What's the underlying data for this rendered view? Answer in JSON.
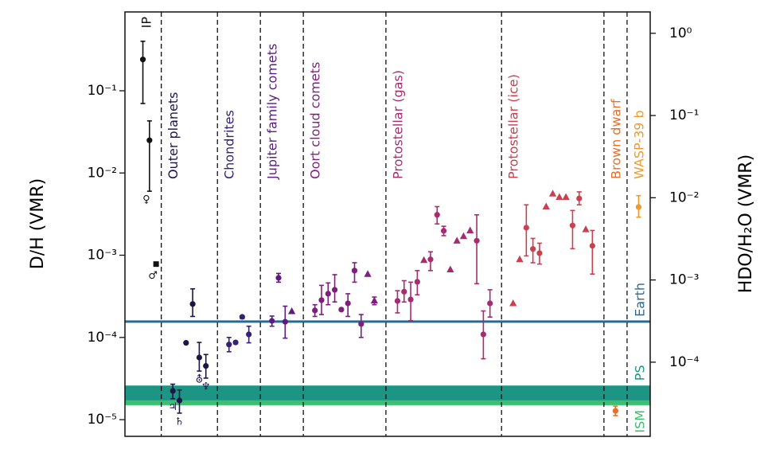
{
  "chart_data": {
    "type": "scatter",
    "y_label": "D/H (VMR)",
    "y2_label": "HDO/H₂O (VMR)",
    "log_y": true,
    "ylim": [
      6.27e-06,
      0.909
    ],
    "yticks": [
      {
        "value": 1e-05,
        "label": "10⁻⁵"
      },
      {
        "value": 0.0001,
        "label": "10⁻⁴"
      },
      {
        "value": 0.001,
        "label": "10⁻³"
      },
      {
        "value": 0.01,
        "label": "10⁻²"
      },
      {
        "value": 0.1,
        "label": "10⁻¹"
      }
    ],
    "y2lim": [
      1.254e-05,
      1.818
    ],
    "y2ticks": [
      {
        "value": 0.0001,
        "label": "10⁻⁴"
      },
      {
        "value": 0.001,
        "label": "10⁻³"
      },
      {
        "value": 0.01,
        "label": "10⁻²"
      },
      {
        "value": 0.1,
        "label": "10⁻¹"
      },
      {
        "value": 1,
        "label": "10⁰"
      }
    ],
    "series": [
      {
        "name": "IP",
        "color": "#111111",
        "values": [
          0.24,
          0.025,
          0.00078
        ],
        "err_low": [
          0.07,
          0.006,
          null
        ],
        "err_high": [
          0.4,
          0.043,
          null
        ],
        "markers": [
          "circle",
          "circle",
          "square"
        ],
        "point_labels": [
          null,
          "♀",
          "♂"
        ]
      },
      {
        "name": "Outer planets",
        "color": "#1e1547",
        "values": [
          2.24e-05,
          1.71e-05,
          8.6e-05,
          0.000255,
          5.7e-05,
          4.5e-05
        ],
        "err_low": [
          1.8e-05,
          1.2e-05,
          null,
          0.00018,
          3.9e-05,
          3.2e-05
        ],
        "err_high": [
          2.7e-05,
          2.3e-05,
          null,
          0.00039,
          8.7e-05,
          6.2e-05
        ],
        "markers": [
          "circle",
          "circle",
          "circle",
          "circle",
          "circle",
          "circle"
        ],
        "point_labels": [
          "♃",
          "♄",
          null,
          null,
          "⛢",
          "♆"
        ]
      },
      {
        "name": "Chondrites",
        "color": "#35207a",
        "values": [
          8.2e-05,
          8.7e-05,
          0.000178,
          0.000109
        ],
        "err_low": [
          6.7e-05,
          null,
          0.00017,
          8.6e-05
        ],
        "err_high": [
          0.0001,
          null,
          0.000182,
          0.000137
        ],
        "markers": [
          "circle",
          "circle",
          "circle",
          "circle"
        ]
      },
      {
        "name": "Jupiter family comets",
        "color": "#5b1b7e",
        "values": [
          0.000159,
          0.00053,
          0.000155,
          0.000208
        ],
        "err_low": [
          0.000137,
          0.00047,
          9.8e-05,
          null
        ],
        "err_high": [
          0.000182,
          0.0006,
          0.00024,
          null
        ],
        "markers": [
          "circle",
          "circle",
          "circle",
          "triangle"
        ]
      },
      {
        "name": "Oort cloud comets",
        "color": "#7e1f7c",
        "values": [
          0.000213,
          0.000284,
          0.00034,
          0.00038,
          0.000218,
          0.00026,
          0.00065,
          0.000146,
          0.00059,
          0.00028
        ],
        "err_low": [
          0.00018,
          0.00019,
          0.00025,
          0.00027,
          null,
          0.00018,
          0.00047,
          0.0001,
          null,
          0.00025
        ],
        "err_high": [
          0.00025,
          0.00043,
          0.00046,
          0.00058,
          null,
          0.00034,
          0.00081,
          0.00019,
          null,
          0.00031
        ],
        "markers": [
          "circle",
          "circle",
          "circle",
          "circle",
          "circle",
          "circle",
          "circle",
          "circle",
          "triangle",
          "triangle"
        ]
      },
      {
        "name": "Protostellar (gas)",
        "color": "#a52d6f",
        "values": [
          0.000278,
          0.00036,
          0.00029,
          0.000475,
          0.00087,
          0.00089,
          0.0031,
          0.00198,
          0.00067,
          0.0015,
          0.0017,
          0.002,
          0.0015,
          0.000109,
          0.00026
        ],
        "err_low": [
          0.000199,
          0.00027,
          0.00016,
          0.00033,
          null,
          0.00065,
          0.0024,
          0.00173,
          null,
          null,
          null,
          null,
          0.00045,
          5.5e-05,
          0.000177
        ],
        "err_high": [
          0.00037,
          0.00049,
          0.00047,
          0.00065,
          null,
          0.0011,
          0.0039,
          0.00225,
          null,
          null,
          null,
          null,
          0.0031,
          0.00021,
          0.00038
        ],
        "markers": [
          "circle",
          "circle",
          "circle",
          "circle",
          "triangle",
          "circle",
          "circle",
          "circle",
          "triangle",
          "triangle",
          "triangle",
          "triangle",
          "circle",
          "circle",
          "circle"
        ]
      },
      {
        "name": "Protostellar (ice)",
        "color": "#c9404f",
        "values": [
          0.00026,
          0.00089,
          0.00216,
          0.00119,
          0.00106,
          0.0039,
          0.0056,
          0.0051,
          0.0051,
          0.0023,
          0.0049,
          0.00206,
          0.0013
        ],
        "err_low": [
          null,
          null,
          0.00098,
          0.00081,
          0.00078,
          null,
          null,
          null,
          null,
          0.0012,
          0.0041,
          null,
          0.00059
        ],
        "err_high": [
          null,
          null,
          0.0041,
          0.0016,
          0.0014,
          null,
          null,
          null,
          null,
          0.0035,
          0.0059,
          null,
          0.002
        ],
        "markers": [
          "triangle",
          "triangle",
          "circle",
          "circle",
          "circle",
          "triangle",
          "triangle",
          "triangle",
          "triangle",
          "circle",
          "circle",
          "triangle",
          "circle"
        ]
      },
      {
        "name": "Brown dwarf",
        "color": "#e5702a",
        "values": [
          1.28e-05
        ],
        "err_low": [
          1.12e-05
        ],
        "err_high": [
          1.46e-05
        ],
        "markers": [
          "circle"
        ]
      },
      {
        "name": "WASP-39 b",
        "color": "#ef9a2c",
        "values": [
          0.00386
        ],
        "err_low": [
          0.0029
        ],
        "err_high": [
          0.0053
        ],
        "markers": [
          "circle"
        ]
      }
    ],
    "references": [
      {
        "name": "Earth",
        "color": "#2b6a8e",
        "value": 0.000156
      },
      {
        "name": "PS",
        "color": "#1c9585",
        "range": [
          1.7e-05,
          2.6e-05
        ]
      },
      {
        "name": "ISM",
        "color": "#3dbf6f",
        "range": [
          1.5e-05,
          1.72e-05
        ]
      }
    ]
  }
}
